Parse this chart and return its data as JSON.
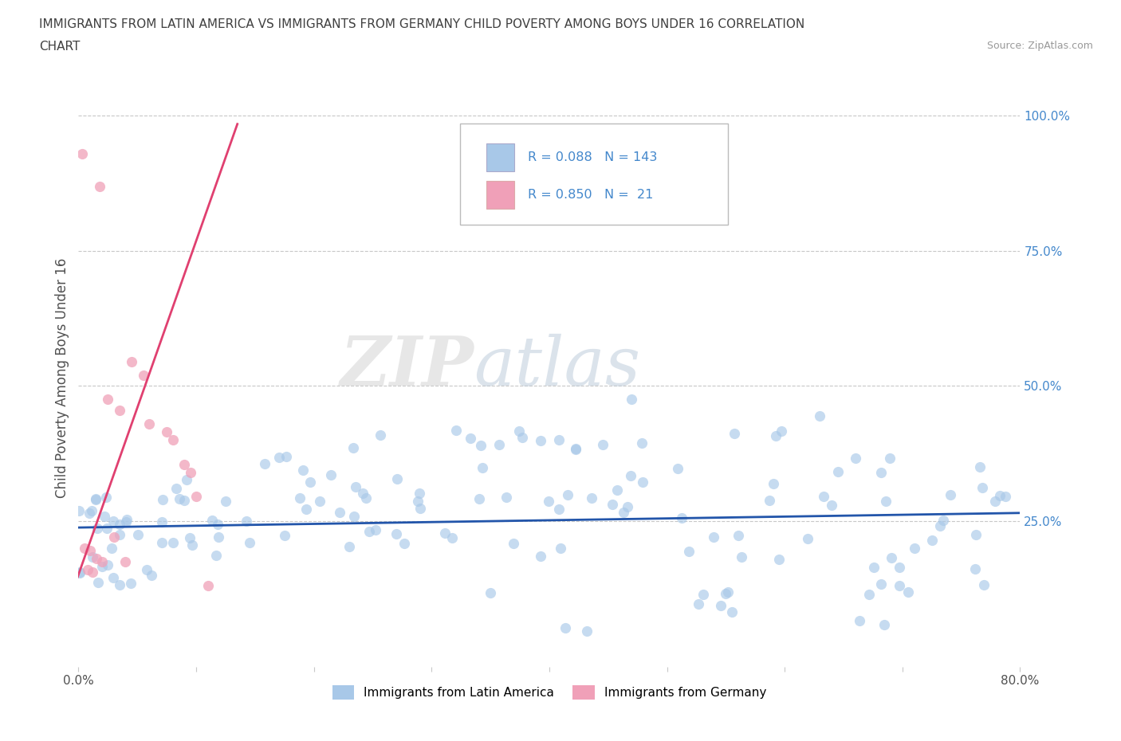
{
  "title_line1": "IMMIGRANTS FROM LATIN AMERICA VS IMMIGRANTS FROM GERMANY CHILD POVERTY AMONG BOYS UNDER 16 CORRELATION",
  "title_line2": "CHART",
  "source": "Source: ZipAtlas.com",
  "ylabel": "Child Poverty Among Boys Under 16",
  "xlim": [
    0.0,
    0.8
  ],
  "ylim": [
    -0.02,
    1.05
  ],
  "r_blue": 0.088,
  "n_blue": 143,
  "r_pink": 0.85,
  "n_pink": 21,
  "blue_color": "#a8c8e8",
  "pink_color": "#f0a0b8",
  "blue_line_color": "#2255aa",
  "pink_line_color": "#e04070",
  "watermark_zip": "ZIP",
  "watermark_atlas": "atlas",
  "legend_label_blue": "Immigrants from Latin America",
  "legend_label_pink": "Immigrants from Germany",
  "background_color": "#ffffff",
  "grid_color": "#c8c8c8",
  "title_color": "#404040",
  "axis_label_color": "#505050",
  "right_tick_color": "#4488cc"
}
